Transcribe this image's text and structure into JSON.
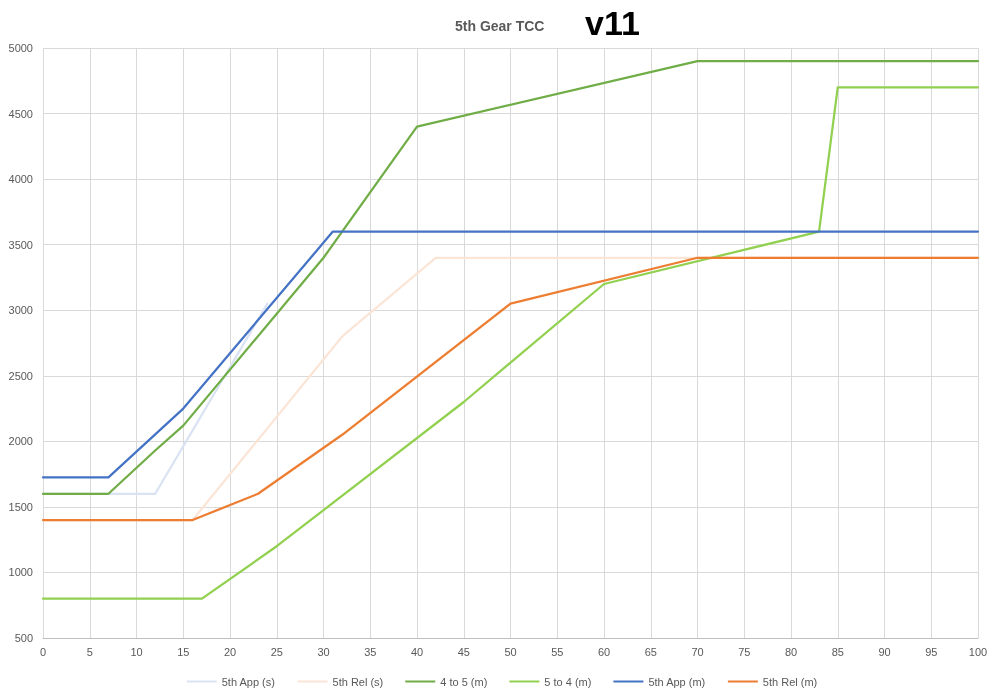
{
  "chart_data": {
    "type": "line",
    "title": "5th Gear TCC",
    "annotations": [
      "v11"
    ],
    "xlim": [
      0,
      100
    ],
    "xticks": [
      0,
      5,
      10,
      15,
      20,
      25,
      30,
      35,
      40,
      45,
      50,
      55,
      60,
      65,
      70,
      75,
      80,
      85,
      90,
      95,
      100
    ],
    "ylim": [
      500,
      5000
    ],
    "yticks": [
      500,
      1000,
      1500,
      2000,
      2500,
      3000,
      3500,
      4000,
      4500,
      5000
    ],
    "grid": true,
    "legend": "bottom",
    "marker": "none",
    "line_style": "solid",
    "series": [
      {
        "name": "5th App (s)",
        "color": "#dae3f3",
        "x": [
          0,
          12,
          24
        ],
        "values": [
          1600,
          1600,
          3050
        ]
      },
      {
        "name": "5th Rel (s)",
        "color": "#fbe5d6",
        "x": [
          0,
          16,
          32,
          42,
          100
        ],
        "values": [
          1400,
          1400,
          2800,
          3400,
          3400
        ]
      },
      {
        "name": "4 to 5 (m)",
        "color": "#70ad47",
        "x": [
          0,
          7,
          12,
          15,
          30,
          40,
          70,
          100
        ],
        "values": [
          1600,
          1600,
          1930,
          2120,
          3400,
          4400,
          4900,
          4900
        ]
      },
      {
        "name": "5 to 4 (m)",
        "color": "#92d050",
        "x": [
          0,
          17,
          25,
          45,
          60,
          83,
          85,
          100
        ],
        "values": [
          800,
          800,
          1200,
          2300,
          3200,
          3600,
          4700,
          4700
        ]
      },
      {
        "name": "5th App (m)",
        "color": "#4472c4",
        "x": [
          0,
          7,
          15,
          31,
          100
        ],
        "values": [
          1725,
          1725,
          2250,
          3600,
          3600
        ]
      },
      {
        "name": "5th Rel (m)",
        "color": "#ed7d31",
        "x": [
          0,
          16,
          23,
          32,
          50,
          70,
          100
        ],
        "values": [
          1400,
          1400,
          1600,
          2050,
          3050,
          3400,
          3400
        ]
      }
    ]
  }
}
